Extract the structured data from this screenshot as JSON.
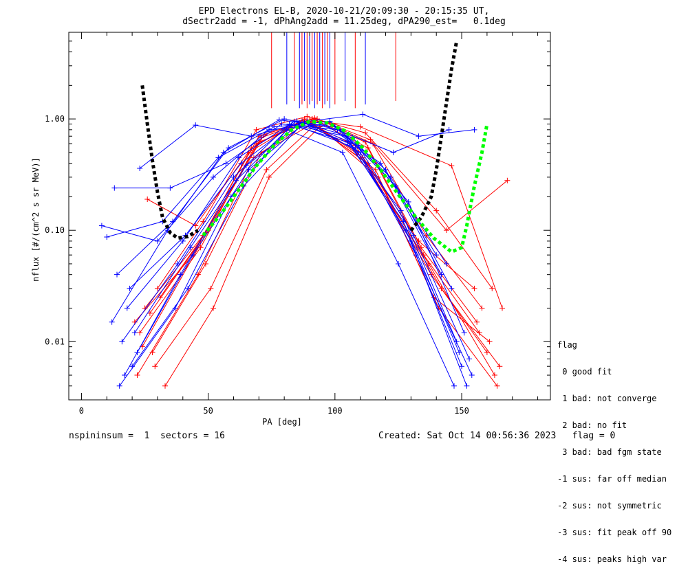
{
  "header": {
    "title_line1": "EPD Electrons EL-B, 2020-10-21/20:09:30 - 20:15:35 UT,",
    "title_line2": "dSectr2add = -1, dPhAng2add = 11.25deg, dPA290_est=   0.1deg"
  },
  "footer": {
    "left": "nspininsum =  1  sectors = 16",
    "right": "Created: Sat Oct 14 00:56:36 2023   flag = 0"
  },
  "legend": {
    "title": "flag",
    "items": [
      " 0 good fit",
      " 1 bad: not converge",
      " 2 bad: no fit",
      " 3 bad: bad fgm state",
      "-1 sus: far off median",
      "-2 sus: not symmetric",
      "-3 sus: fit peak off 90",
      "-4 sus: peaks high var"
    ]
  },
  "colors": {
    "series_red": "#ff0000",
    "series_blue": "#0000ff",
    "fit_black": "#000000",
    "fit_green": "#00ff00"
  },
  "chart_data": {
    "type": "line",
    "xlabel": "PA [deg]",
    "ylabel": "nflux [#/(cm^2 s sr MeV)]",
    "xlim": [
      -5,
      185
    ],
    "ylim": [
      0.003,
      6
    ],
    "yscale": "log",
    "xticks": [
      0,
      50,
      100,
      150
    ],
    "xtick_labels": [
      "0",
      "50",
      "100",
      "150"
    ],
    "yticks": [
      0.01,
      0.1,
      1.0
    ],
    "ytick_labels": [
      "0.01",
      "0.10",
      "1.00"
    ],
    "grid": false,
    "legend_position": "right-bottom outside",
    "series": [
      {
        "color": "red",
        "x": [
          23,
          47,
          69,
          91,
          113,
          135,
          157
        ],
        "y": [
          0.012,
          0.07,
          0.6,
          1.0,
          0.55,
          0.06,
          0.012
        ]
      },
      {
        "color": "red",
        "x": [
          25,
          48,
          70,
          92,
          114,
          136,
          158
        ],
        "y": [
          0.02,
          0.09,
          0.7,
          1.02,
          0.65,
          0.09,
          0.02
        ]
      },
      {
        "color": "red",
        "x": [
          28,
          49,
          71,
          90,
          111,
          138,
          160
        ],
        "y": [
          0.008,
          0.05,
          0.5,
          0.95,
          0.45,
          0.04,
          0.008
        ]
      },
      {
        "color": "red",
        "x": [
          30,
          48,
          69,
          89,
          112,
          140,
          162
        ],
        "y": [
          0.03,
          0.12,
          0.8,
          1.05,
          0.75,
          0.15,
          0.03
        ]
      },
      {
        "color": "red",
        "x": [
          22,
          46,
          68,
          91,
          113,
          142,
          165
        ],
        "y": [
          0.005,
          0.04,
          0.45,
          0.9,
          0.4,
          0.03,
          0.006
        ]
      },
      {
        "color": "red",
        "x": [
          27,
          47,
          70,
          93,
          115,
          144,
          168
        ],
        "y": [
          0.018,
          0.08,
          0.62,
          1.0,
          0.6,
          0.1,
          0.28
        ]
      },
      {
        "color": "red",
        "x": [
          24,
          50,
          72,
          90,
          110,
          146,
          166
        ],
        "y": [
          0.009,
          0.1,
          0.72,
          0.98,
          0.85,
          0.38,
          0.02
        ]
      },
      {
        "color": "red",
        "x": [
          26,
          45,
          67,
          88,
          109,
          137,
          163
        ],
        "y": [
          0.19,
          0.11,
          0.55,
          1.0,
          0.5,
          0.05,
          0.005
        ]
      },
      {
        "color": "red",
        "x": [
          29,
          51,
          73,
          92,
          116,
          139,
          161
        ],
        "y": [
          0.006,
          0.03,
          0.35,
          0.88,
          0.35,
          0.025,
          0.01
        ]
      },
      {
        "color": "red",
        "x": [
          31,
          49,
          71,
          91,
          112,
          134,
          156
        ],
        "y": [
          0.025,
          0.095,
          0.68,
          1.0,
          0.62,
          0.07,
          0.015
        ]
      },
      {
        "color": "red",
        "x": [
          33,
          52,
          74,
          94,
          117,
          141,
          164
        ],
        "y": [
          0.004,
          0.02,
          0.3,
          0.85,
          0.3,
          0.02,
          0.004
        ]
      },
      {
        "color": "red",
        "x": [
          21,
          44,
          66,
          87,
          108,
          133,
          155
        ],
        "y": [
          0.015,
          0.06,
          0.5,
          0.97,
          0.58,
          0.08,
          0.03
        ]
      },
      {
        "color": "blue",
        "x": [
          16,
          38,
          60,
          82,
          104,
          126,
          148
        ],
        "y": [
          0.01,
          0.05,
          0.3,
          0.9,
          0.7,
          0.15,
          0.01
        ]
      },
      {
        "color": "blue",
        "x": [
          18,
          40,
          62,
          84,
          106,
          128,
          150
        ],
        "y": [
          0.02,
          0.08,
          0.45,
          0.95,
          0.6,
          0.1,
          0.006
        ]
      },
      {
        "color": "blue",
        "x": [
          20,
          42,
          64,
          86,
          108,
          130,
          152
        ],
        "y": [
          0.006,
          0.03,
          0.25,
          0.85,
          0.55,
          0.08,
          0.004
        ]
      },
      {
        "color": "blue",
        "x": [
          14,
          36,
          58,
          80,
          102,
          124,
          146
        ],
        "y": [
          0.04,
          0.12,
          0.55,
          1.0,
          0.8,
          0.25,
          0.03
        ]
      },
      {
        "color": "blue",
        "x": [
          22,
          44,
          66,
          88,
          110,
          132,
          154
        ],
        "y": [
          0.008,
          0.06,
          0.35,
          0.92,
          0.5,
          0.06,
          0.005
        ]
      },
      {
        "color": "blue",
        "x": [
          12,
          34,
          56,
          78,
          100,
          122,
          144
        ],
        "y": [
          0.015,
          0.1,
          0.5,
          0.98,
          0.85,
          0.3,
          0.05
        ]
      },
      {
        "color": "blue",
        "x": [
          17,
          39,
          61,
          83,
          105,
          127,
          149
        ],
        "y": [
          0.005,
          0.04,
          0.28,
          0.88,
          0.62,
          0.12,
          0.008
        ]
      },
      {
        "color": "blue",
        "x": [
          19,
          41,
          63,
          85,
          107,
          129,
          151
        ],
        "y": [
          0.03,
          0.09,
          0.4,
          0.96,
          0.68,
          0.18,
          0.012
        ]
      },
      {
        "color": "blue",
        "x": [
          8,
          30,
          52,
          74,
          96,
          118,
          140
        ],
        "y": [
          0.11,
          0.08,
          0.3,
          0.8,
          0.9,
          0.4,
          0.06
        ]
      },
      {
        "color": "blue",
        "x": [
          13,
          35,
          57,
          79,
          101,
          123,
          145
        ],
        "y": [
          0.24,
          0.24,
          0.4,
          0.9,
          0.8,
          0.5,
          0.8
        ]
      },
      {
        "color": "blue",
        "x": [
          23,
          45,
          67,
          89,
          111,
          133,
          155
        ],
        "y": [
          0.36,
          0.88,
          0.7,
          0.95,
          1.1,
          0.7,
          0.8
        ]
      },
      {
        "color": "blue",
        "x": [
          10,
          32,
          54,
          76,
          98,
          120,
          142
        ],
        "y": [
          0.087,
          0.12,
          0.45,
          0.85,
          0.95,
          0.35,
          0.04
        ]
      },
      {
        "color": "blue",
        "x": [
          15,
          37,
          59,
          81,
          103,
          125,
          147
        ],
        "y": [
          0.004,
          0.02,
          0.2,
          0.8,
          0.5,
          0.05,
          0.004
        ]
      },
      {
        "color": "blue",
        "x": [
          21,
          43,
          65,
          87,
          109,
          131,
          153
        ],
        "y": [
          0.012,
          0.07,
          0.38,
          0.94,
          0.58,
          0.09,
          0.007
        ]
      }
    ],
    "fits": [
      {
        "color": "black",
        "x": [
          24,
          26,
          28,
          30,
          32,
          35,
          38,
          42,
          46
        ],
        "y": [
          2.0,
          0.9,
          0.42,
          0.22,
          0.13,
          0.095,
          0.085,
          0.088,
          0.1
        ]
      },
      {
        "color": "black",
        "x": [
          130,
          134,
          138,
          140,
          142,
          144,
          146,
          148
        ],
        "y": [
          0.1,
          0.13,
          0.2,
          0.35,
          0.7,
          1.4,
          2.8,
          5.0
        ]
      },
      {
        "color": "green",
        "x": [
          48,
          55,
          62,
          69,
          76,
          83,
          90,
          97,
          104,
          111,
          118,
          125,
          132,
          139,
          146,
          150,
          152,
          155,
          158,
          160
        ],
        "y": [
          0.09,
          0.14,
          0.23,
          0.38,
          0.58,
          0.8,
          0.95,
          0.92,
          0.78,
          0.55,
          0.35,
          0.21,
          0.13,
          0.085,
          0.064,
          0.07,
          0.11,
          0.25,
          0.5,
          0.9
        ]
      }
    ],
    "spikes_x": [
      75,
      81,
      84,
      86,
      87,
      88,
      89,
      90,
      91,
      92,
      93,
      94,
      95,
      96,
      97,
      98,
      100,
      104,
      108,
      112,
      124
    ]
  }
}
